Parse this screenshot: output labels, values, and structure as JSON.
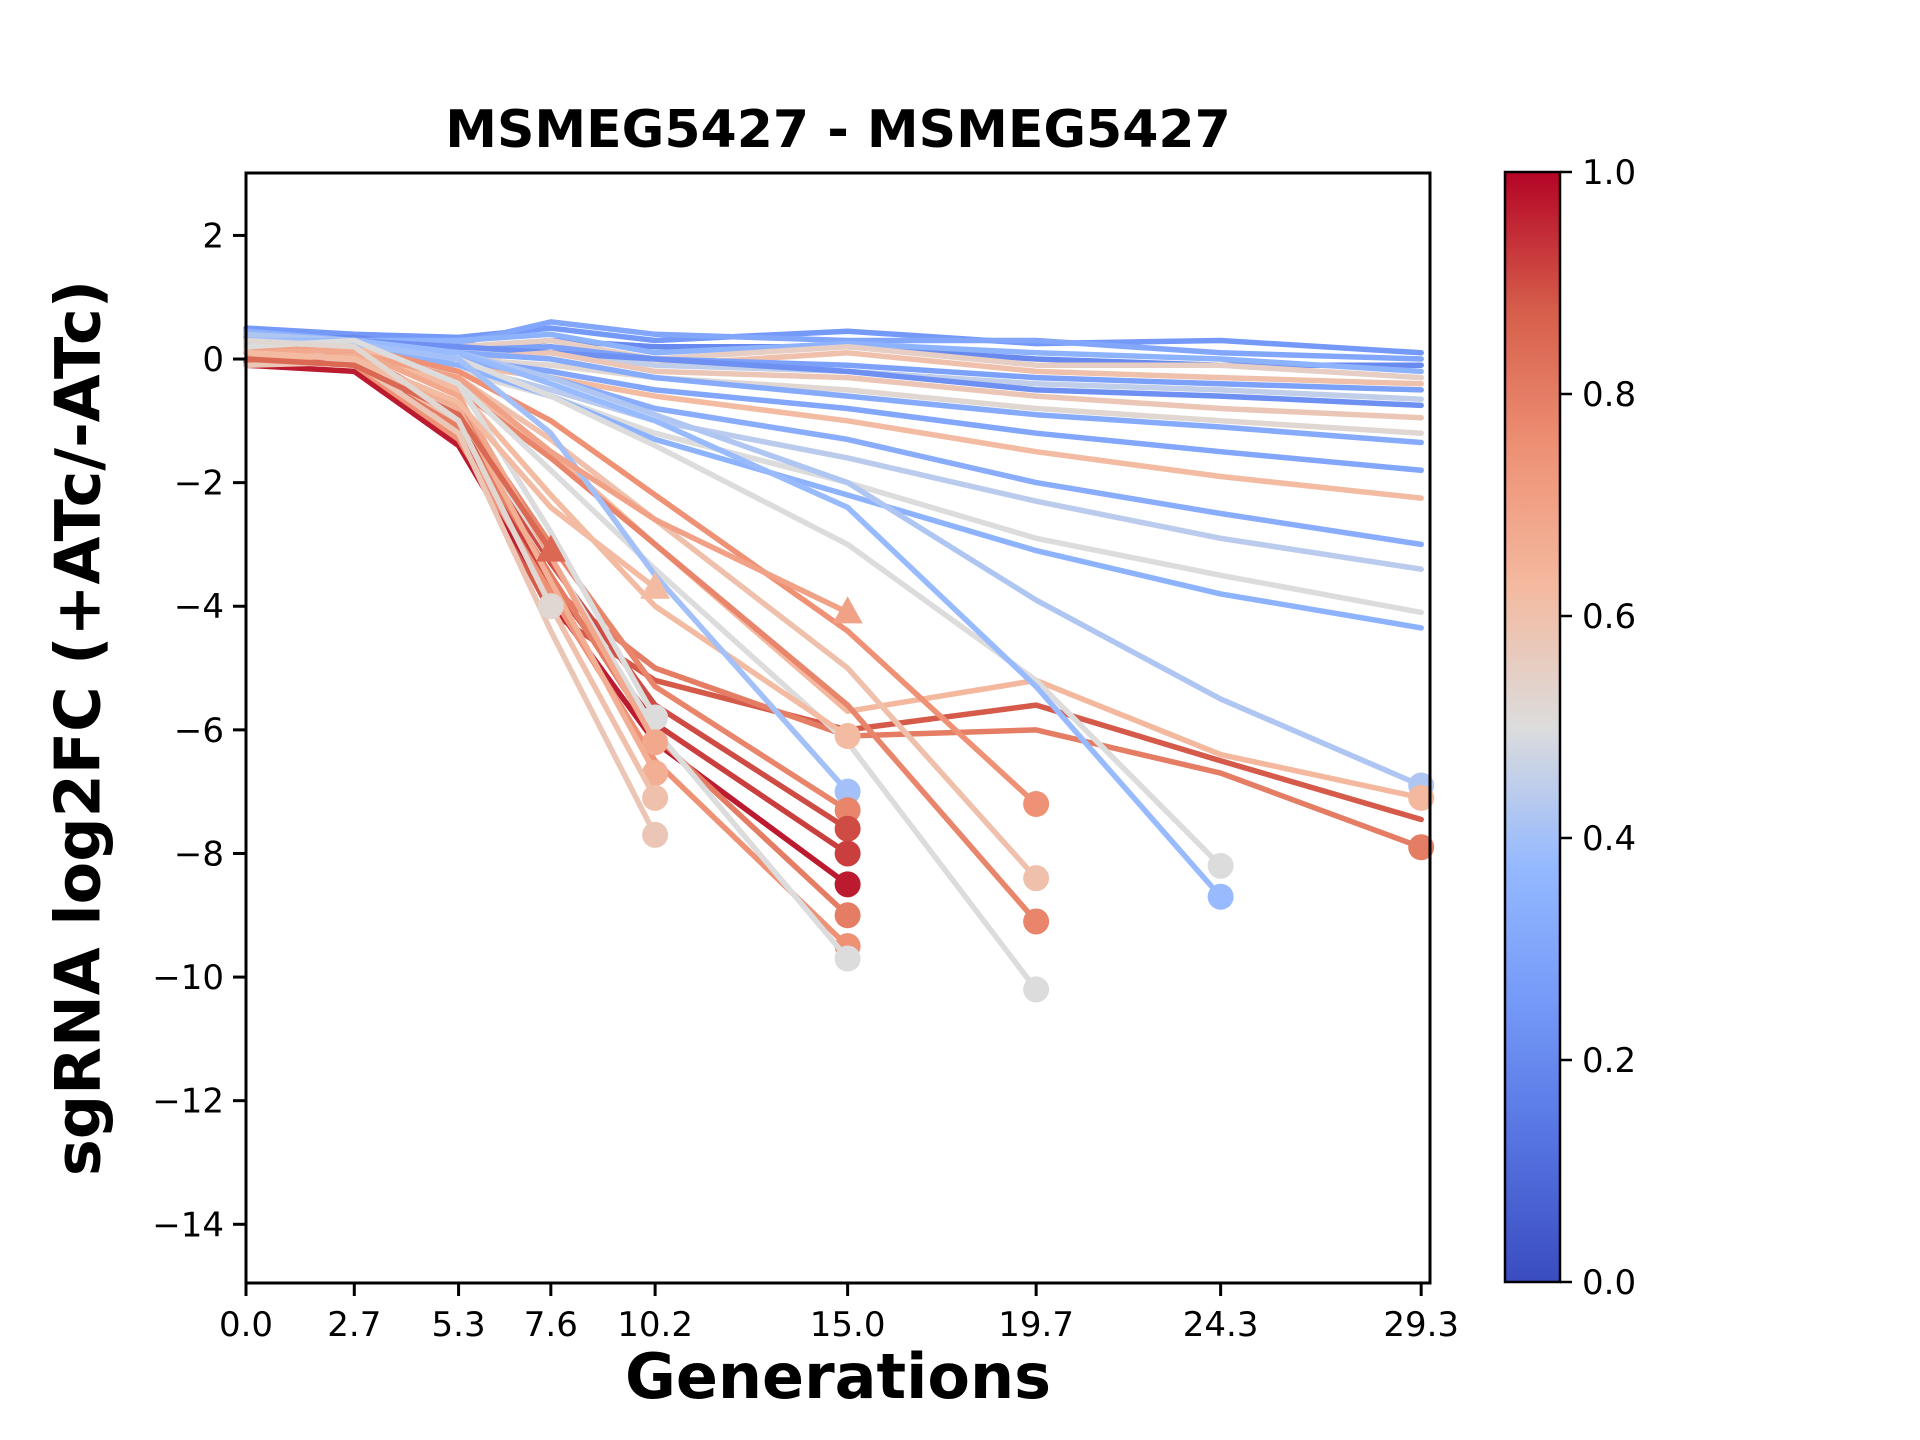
{
  "chart_data": {
    "type": "line",
    "title": "MSMEG5427 - MSMEG5427",
    "xlabel": "Generations",
    "ylabel": "sgRNA log2FC (+ATc/-ATc)",
    "x": [
      0.0,
      2.7,
      5.3,
      7.6,
      10.2,
      15.0,
      19.7,
      24.3,
      29.3
    ],
    "xtick_labels": [
      "0.0",
      "2.7",
      "5.3",
      "7.6",
      "10.2",
      "15.0",
      "19.7",
      "24.3",
      "29.3"
    ],
    "ytick_values": [
      2,
      0,
      -2,
      -4,
      -6,
      -8,
      -10,
      -12,
      -14
    ],
    "ytick_labels": [
      "2",
      "0",
      "−2",
      "−4",
      "−6",
      "−8",
      "−10",
      "−12",
      "−14"
    ],
    "xlim": [
      0,
      29.52
    ],
    "ylim": [
      -14.95,
      3.01
    ],
    "grid": false,
    "background_color": "#ffffff",
    "axis_color": "#000000",
    "colorbar": {
      "tick_labels": [
        "1.0",
        "0.8",
        "0.6",
        "0.4",
        "0.2",
        "0.0"
      ],
      "tick_values": [
        1.0,
        0.8,
        0.6,
        0.4,
        0.2,
        0.0
      ],
      "min": 0.0,
      "max": 1.0
    },
    "colormap": {
      "name": "coolwarm",
      "stops": [
        [
          0.0,
          "#3a4cc0"
        ],
        [
          0.125,
          "#5573e1"
        ],
        [
          0.25,
          "#7499f8"
        ],
        [
          0.375,
          "#95b9ff"
        ],
        [
          0.5,
          "#dcdcdc"
        ],
        [
          0.625,
          "#f4baa0"
        ],
        [
          0.75,
          "#ee9175"
        ],
        [
          0.875,
          "#d65e4b"
        ],
        [
          1.0,
          "#b40426"
        ]
      ]
    },
    "series": [
      {
        "c": 0.25,
        "marker": "none",
        "y": [
          0.5,
          0.4,
          0.35,
          0.5,
          0.3,
          0.45,
          0.25,
          0.3,
          0.1
        ]
      },
      {
        "c": 0.3,
        "marker": "none",
        "y": [
          0.4,
          0.3,
          0.25,
          0.6,
          0.4,
          0.3,
          0.3,
          0.1,
          0.0
        ]
      },
      {
        "c": 0.2,
        "marker": "none",
        "y": [
          0.3,
          0.35,
          0.15,
          0.3,
          0.2,
          0.2,
          0.0,
          -0.1,
          -0.1
        ]
      },
      {
        "c": 0.35,
        "marker": "none",
        "y": [
          0.45,
          0.3,
          0.3,
          0.4,
          0.1,
          0.25,
          0.1,
          0.0,
          -0.2
        ]
      },
      {
        "c": 0.55,
        "marker": "none",
        "y": [
          0.2,
          0.3,
          0.2,
          0.3,
          0.0,
          0.2,
          -0.1,
          -0.1,
          -0.3
        ]
      },
      {
        "c": 0.6,
        "marker": "none",
        "y": [
          0.1,
          0.2,
          0.1,
          0.2,
          -0.1,
          0.1,
          -0.2,
          -0.3,
          -0.4
        ]
      },
      {
        "c": 0.28,
        "marker": "none",
        "y": [
          0.35,
          0.25,
          0.15,
          0.2,
          0.0,
          -0.1,
          -0.3,
          -0.4,
          -0.5
        ]
      },
      {
        "c": 0.45,
        "marker": "none",
        "y": [
          0.3,
          0.2,
          0.1,
          0.1,
          -0.1,
          -0.2,
          -0.4,
          -0.5,
          -0.65
        ]
      },
      {
        "c": 0.22,
        "marker": "none",
        "y": [
          0.4,
          0.3,
          0.2,
          0.1,
          0.0,
          -0.2,
          -0.5,
          -0.6,
          -0.75
        ]
      },
      {
        "c": 0.58,
        "marker": "none",
        "y": [
          0.15,
          0.2,
          0.0,
          0.1,
          -0.2,
          -0.3,
          -0.6,
          -0.8,
          -0.95
        ]
      },
      {
        "c": 0.52,
        "marker": "none",
        "y": [
          0.2,
          0.1,
          0.0,
          -0.1,
          -0.3,
          -0.5,
          -0.8,
          -1.0,
          -1.2
        ]
      },
      {
        "c": 0.32,
        "marker": "none",
        "y": [
          0.3,
          0.2,
          0.1,
          0.0,
          -0.3,
          -0.6,
          -0.9,
          -1.1,
          -1.35
        ]
      },
      {
        "c": 0.3,
        "marker": "none",
        "y": [
          0.35,
          0.3,
          0.0,
          -0.2,
          -0.5,
          -0.8,
          -1.2,
          -1.5,
          -1.8
        ]
      },
      {
        "c": 0.62,
        "marker": "none",
        "y": [
          0.2,
          0.1,
          -0.1,
          -0.3,
          -0.6,
          -1.0,
          -1.5,
          -1.9,
          -2.25
        ]
      },
      {
        "c": 0.33,
        "marker": "none",
        "y": [
          0.3,
          0.2,
          0.0,
          -0.3,
          -0.8,
          -1.3,
          -2.0,
          -2.5,
          -3.0
        ]
      },
      {
        "c": 0.44,
        "marker": "none",
        "y": [
          0.25,
          0.15,
          -0.1,
          -0.5,
          -1.0,
          -1.6,
          -2.3,
          -2.9,
          -3.4
        ]
      },
      {
        "c": 0.5,
        "marker": "none",
        "y": [
          0.2,
          0.1,
          -0.2,
          -0.6,
          -1.2,
          -2.0,
          -2.9,
          -3.5,
          -4.1
        ]
      },
      {
        "c": 0.35,
        "marker": "none",
        "y": [
          0.3,
          0.2,
          -0.1,
          -0.6,
          -1.3,
          -2.2,
          -3.1,
          -3.8,
          -4.35
        ]
      },
      {
        "c": 0.42,
        "marker": "circle",
        "y": [
          0.4,
          0.3,
          0.1,
          -0.3,
          -0.9,
          -2.0,
          -3.9,
          -5.5,
          -6.9
        ]
      },
      {
        "c": 0.63,
        "marker": "circle",
        "y": [
          0.1,
          0.15,
          -0.4,
          -1.5,
          -3.0,
          -5.7,
          -5.2,
          -6.4,
          -7.1
        ]
      },
      {
        "c": 0.88,
        "marker": "none",
        "y": [
          0.0,
          0.25,
          -1.3,
          -4.1,
          -5.2,
          -6.0,
          -5.6,
          -6.5,
          -7.45
        ]
      },
      {
        "c": 0.8,
        "marker": "circle",
        "y": [
          0.1,
          0.0,
          -1.0,
          -3.7,
          -5.0,
          -6.1,
          -6.0,
          -6.7,
          -7.9
        ]
      },
      {
        "c": 0.5,
        "marker": "circle",
        "y": [
          0.2,
          0.25,
          0.0,
          -0.6,
          -1.4,
          -3.0,
          -5.2,
          -8.2
        ]
      },
      {
        "c": 0.38,
        "marker": "circle",
        "y": [
          0.3,
          0.3,
          0.1,
          -0.4,
          -1.0,
          -2.4,
          -5.3,
          -8.7
        ]
      },
      {
        "c": 0.75,
        "marker": "circle",
        "y": [
          0.1,
          0.2,
          -0.2,
          -1.0,
          -2.2,
          -4.4,
          -7.2
        ]
      },
      {
        "c": 0.6,
        "marker": "circle",
        "y": [
          0.2,
          0.1,
          -0.3,
          -1.3,
          -2.6,
          -5.0,
          -8.4
        ]
      },
      {
        "c": 0.78,
        "marker": "circle",
        "y": [
          0.0,
          0.1,
          -0.5,
          -1.6,
          -3.0,
          -5.6,
          -9.1
        ]
      },
      {
        "c": 0.5,
        "marker": "circle",
        "y": [
          0.3,
          0.2,
          -0.4,
          -1.8,
          -3.4,
          -6.2,
          -10.2
        ]
      },
      {
        "c": 0.62,
        "marker": "circle",
        "y": [
          0.1,
          0.2,
          -0.5,
          -2.2,
          -4.0,
          -6.1
        ]
      },
      {
        "c": 0.4,
        "marker": "circle",
        "y": [
          0.3,
          0.25,
          0.0,
          -1.2,
          -3.5,
          -7.0
        ]
      },
      {
        "c": 0.78,
        "marker": "circle",
        "y": [
          0.0,
          0.1,
          -0.8,
          -3.0,
          -5.3,
          -7.3
        ]
      },
      {
        "c": 0.9,
        "marker": "circle",
        "y": [
          -0.05,
          0.0,
          -1.0,
          -3.3,
          -5.6,
          -7.6
        ]
      },
      {
        "c": 0.92,
        "marker": "circle",
        "y": [
          0.1,
          -0.1,
          -1.2,
          -3.6,
          -5.9,
          -8.0
        ]
      },
      {
        "c": 0.97,
        "marker": "circle",
        "y": [
          -0.1,
          -0.2,
          -1.4,
          -3.9,
          -6.2,
          -8.5
        ]
      },
      {
        "c": 0.8,
        "marker": "circle",
        "y": [
          0.2,
          0.1,
          -1.1,
          -3.5,
          -6.1,
          -9.0
        ]
      },
      {
        "c": 0.75,
        "marker": "circle",
        "y": [
          0.0,
          -0.1,
          -1.3,
          -3.8,
          -6.5,
          -9.5
        ]
      },
      {
        "c": 0.5,
        "marker": "circle",
        "y": [
          0.15,
          0.1,
          -0.9,
          -3.2,
          -6.0,
          -9.7
        ]
      },
      {
        "c": 0.7,
        "marker": "triangle",
        "y": [
          0.2,
          0.1,
          -0.3,
          -1.5,
          -2.6,
          -4.1
        ]
      },
      {
        "c": 0.5,
        "marker": "circle",
        "y": [
          0.2,
          0.3,
          -0.4,
          -2.8,
          -5.8
        ]
      },
      {
        "c": 0.68,
        "marker": "circle",
        "y": [
          0.1,
          0.15,
          -0.6,
          -3.2,
          -6.2
        ]
      },
      {
        "c": 0.66,
        "marker": "circle",
        "y": [
          0.0,
          0.05,
          -0.8,
          -3.6,
          -6.7
        ]
      },
      {
        "c": 0.6,
        "marker": "circle",
        "y": [
          0.1,
          0.0,
          -1.0,
          -4.0,
          -7.1
        ]
      },
      {
        "c": 0.58,
        "marker": "circle",
        "y": [
          -0.1,
          -0.05,
          -1.2,
          -4.4,
          -7.7
        ]
      },
      {
        "c": 0.62,
        "marker": "triangle",
        "y": [
          0.1,
          0.0,
          -0.7,
          -2.4,
          -3.7
        ]
      },
      {
        "c": 0.85,
        "marker": "triangle",
        "y": [
          0.0,
          -0.1,
          -0.9,
          -3.1
        ]
      },
      {
        "c": 0.52,
        "marker": "circle",
        "y": [
          0.3,
          0.2,
          -1.0,
          -4.0
        ]
      }
    ]
  }
}
